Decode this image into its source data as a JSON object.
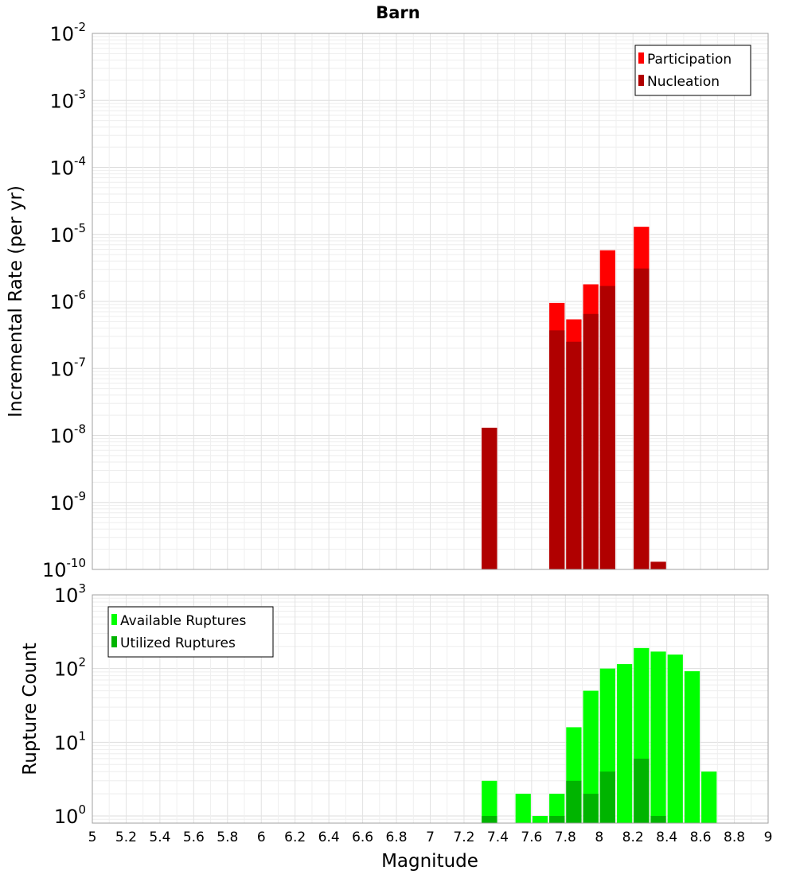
{
  "chart_data": {
    "type": "bar",
    "title": "Barn",
    "xlabel": "Magnitude",
    "xlim": [
      5,
      9
    ],
    "x_ticks": [
      "5",
      "5.2",
      "5.4",
      "5.6",
      "5.8",
      "6",
      "6.2",
      "6.4",
      "6.6",
      "6.8",
      "7",
      "7.2",
      "7.4",
      "7.6",
      "7.8",
      "8",
      "8.2",
      "8.4",
      "8.6",
      "8.8",
      "9"
    ],
    "bin_width": 0.1,
    "panels": [
      {
        "id": "rate",
        "ylabel": "Incremental Rate (per yr)",
        "yscale": "log",
        "ylim": [
          1e-10,
          0.01
        ],
        "y_tick_exponents": [
          "-10",
          "-9",
          "-8",
          "-7",
          "-6",
          "-5",
          "-4",
          "-3",
          "-2"
        ],
        "y_tick_base": "10",
        "legend": {
          "position": "top-right",
          "entries": [
            "Participation",
            "Nucleation"
          ]
        },
        "series": [
          {
            "name": "Participation",
            "color": "#ff0000",
            "points": [
              {
                "x": 7.35,
                "y": 1.3e-08
              },
              {
                "x": 7.75,
                "y": 9.5e-07
              },
              {
                "x": 7.85,
                "y": 5.4e-07
              },
              {
                "x": 7.95,
                "y": 1.8e-06
              },
              {
                "x": 8.05,
                "y": 5.8e-06
              },
              {
                "x": 8.25,
                "y": 1.3e-05
              },
              {
                "x": 8.35,
                "y": 1.3e-10
              }
            ]
          },
          {
            "name": "Nucleation",
            "color": "#b00000",
            "points": [
              {
                "x": 7.35,
                "y": 1.3e-08
              },
              {
                "x": 7.75,
                "y": 3.7e-07
              },
              {
                "x": 7.85,
                "y": 2.5e-07
              },
              {
                "x": 7.95,
                "y": 6.5e-07
              },
              {
                "x": 8.05,
                "y": 1.7e-06
              },
              {
                "x": 8.25,
                "y": 3.1e-06
              },
              {
                "x": 8.35,
                "y": 1.3e-10
              }
            ]
          }
        ]
      },
      {
        "id": "count",
        "ylabel": "Rupture Count",
        "yscale": "log",
        "ylim": [
          0.8,
          1000
        ],
        "y_tick_exponents": [
          "0",
          "1",
          "2",
          "3"
        ],
        "y_tick_base": "10",
        "legend": {
          "position": "top-left",
          "entries": [
            "Available Ruptures",
            "Utilized Ruptures"
          ]
        },
        "series": [
          {
            "name": "Available Ruptures",
            "color": "#00ff00",
            "points": [
              {
                "x": 7.35,
                "y": 3
              },
              {
                "x": 7.55,
                "y": 2
              },
              {
                "x": 7.65,
                "y": 1
              },
              {
                "x": 7.75,
                "y": 2
              },
              {
                "x": 7.85,
                "y": 16
              },
              {
                "x": 7.95,
                "y": 50
              },
              {
                "x": 8.05,
                "y": 100
              },
              {
                "x": 8.15,
                "y": 115
              },
              {
                "x": 8.25,
                "y": 190
              },
              {
                "x": 8.35,
                "y": 170
              },
              {
                "x": 8.45,
                "y": 155
              },
              {
                "x": 8.55,
                "y": 92
              },
              {
                "x": 8.65,
                "y": 4
              }
            ]
          },
          {
            "name": "Utilized Ruptures",
            "color": "#00b400",
            "points": [
              {
                "x": 7.35,
                "y": 1
              },
              {
                "x": 7.75,
                "y": 1
              },
              {
                "x": 7.85,
                "y": 3
              },
              {
                "x": 7.95,
                "y": 2
              },
              {
                "x": 8.05,
                "y": 4
              },
              {
                "x": 8.25,
                "y": 6
              },
              {
                "x": 8.35,
                "y": 1
              }
            ]
          }
        ]
      }
    ]
  }
}
